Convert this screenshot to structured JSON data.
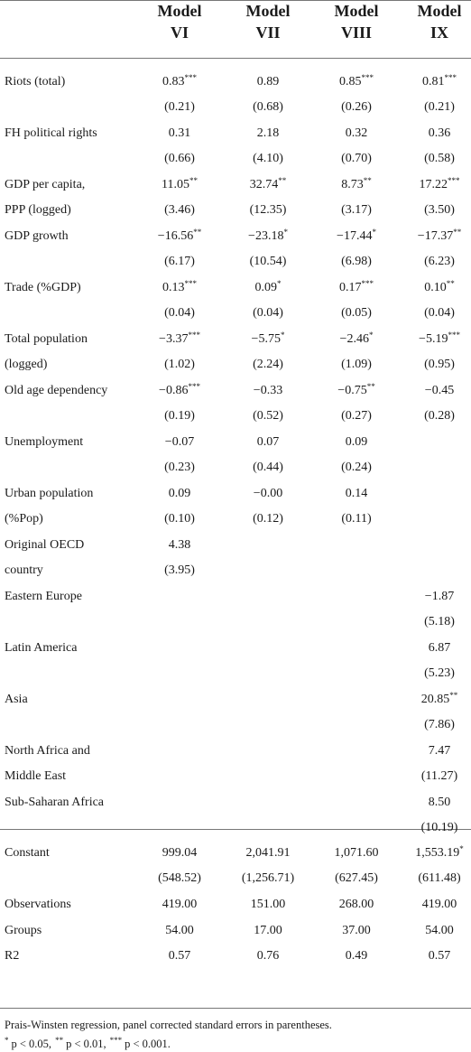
{
  "table": {
    "columns": [
      "Model VI",
      "Model VII",
      "Model VIII",
      "Model IX"
    ],
    "coefficients": [
      {
        "label": [
          "Riots (total)"
        ],
        "coef": [
          "0.83",
          "0.89",
          "0.85",
          "0.81"
        ],
        "stars": [
          "***",
          null,
          "***",
          "***"
        ],
        "se": [
          "(0.21)",
          "(0.68)",
          "(0.26)",
          "(0.21)"
        ]
      },
      {
        "label": [
          "FH political rights"
        ],
        "coef": [
          "0.31",
          "2.18",
          "0.32",
          "0.36"
        ],
        "stars": [
          null,
          null,
          null,
          null
        ],
        "se": [
          "(0.66)",
          "(4.10)",
          "(0.70)",
          "(0.58)"
        ]
      },
      {
        "label": [
          "GDP per capita,",
          "PPP (logged)"
        ],
        "coef": [
          "11.05",
          "32.74",
          "8.73",
          "17.22"
        ],
        "stars": [
          "**",
          "**",
          "**",
          "***"
        ],
        "se": [
          "(3.46)",
          "(12.35)",
          "(3.17)",
          "(3.50)"
        ]
      },
      {
        "label": [
          "GDP growth"
        ],
        "coef": [
          "−16.56",
          "−23.18",
          "−17.44",
          "−17.37"
        ],
        "stars": [
          "**",
          "*",
          "*",
          "**"
        ],
        "se": [
          "(6.17)",
          "(10.54)",
          "(6.98)",
          "(6.23)"
        ]
      },
      {
        "label": [
          "Trade (%GDP)"
        ],
        "coef": [
          "0.13",
          "0.09",
          "0.17",
          "0.10"
        ],
        "stars": [
          "***",
          "*",
          "***",
          "**"
        ],
        "se": [
          "(0.04)",
          "(0.04)",
          "(0.05)",
          "(0.04)"
        ]
      },
      {
        "label": [
          "Total population",
          "(logged)"
        ],
        "coef": [
          "−3.37",
          "−5.75",
          "−2.46",
          "−5.19"
        ],
        "stars": [
          "***",
          "*",
          "*",
          "***"
        ],
        "se": [
          "(1.02)",
          "(2.24)",
          "(1.09)",
          "(0.95)"
        ]
      },
      {
        "label": [
          "Old age dependency"
        ],
        "coef": [
          "−0.86",
          "−0.33",
          "−0.75",
          "−0.45"
        ],
        "stars": [
          "***",
          null,
          "**",
          null
        ],
        "se": [
          "(0.19)",
          "(0.52)",
          "(0.27)",
          "(0.28)"
        ]
      },
      {
        "label": [
          "Unemployment"
        ],
        "coef": [
          "−0.07",
          "0.07",
          "0.09",
          null
        ],
        "stars": [
          null,
          null,
          null,
          null
        ],
        "se": [
          "(0.23)",
          "(0.44)",
          "(0.24)",
          null
        ]
      },
      {
        "label": [
          "Urban population",
          "(%Pop)"
        ],
        "coef": [
          "0.09",
          "−0.00",
          "0.14",
          null
        ],
        "stars": [
          null,
          null,
          null,
          null
        ],
        "se": [
          "(0.10)",
          "(0.12)",
          "(0.11)",
          null
        ]
      },
      {
        "label": [
          "Original OECD",
          "country"
        ],
        "coef": [
          "4.38",
          null,
          null,
          null
        ],
        "stars": [
          null,
          null,
          null,
          null
        ],
        "se": [
          "(3.95)",
          null,
          null,
          null
        ]
      },
      {
        "label": [
          "Eastern Europe"
        ],
        "coef": [
          null,
          null,
          null,
          "−1.87"
        ],
        "stars": [
          null,
          null,
          null,
          null
        ],
        "se": [
          null,
          null,
          null,
          "(5.18)"
        ]
      },
      {
        "label": [
          "Latin America"
        ],
        "coef": [
          null,
          null,
          null,
          "6.87"
        ],
        "stars": [
          null,
          null,
          null,
          null
        ],
        "se": [
          null,
          null,
          null,
          "(5.23)"
        ]
      },
      {
        "label": [
          "Asia"
        ],
        "coef": [
          null,
          null,
          null,
          "20.85"
        ],
        "stars": [
          null,
          null,
          null,
          "**"
        ],
        "se": [
          null,
          null,
          null,
          "(7.86)"
        ]
      },
      {
        "label": [
          "North Africa and",
          "Middle East"
        ],
        "coef": [
          null,
          null,
          null,
          "7.47"
        ],
        "stars": [
          null,
          null,
          null,
          null
        ],
        "se": [
          null,
          null,
          null,
          "(11.27)"
        ]
      },
      {
        "label": [
          "Sub-Saharan Africa"
        ],
        "coef": [
          null,
          null,
          null,
          "8.50"
        ],
        "stars": [
          null,
          null,
          null,
          null
        ],
        "se": [
          null,
          null,
          null,
          "(10.19)"
        ]
      }
    ],
    "summary": [
      {
        "label": [
          "Constant"
        ],
        "coef": [
          "999.04",
          "2,041.91",
          "1,071.60",
          "1,553.19"
        ],
        "stars": [
          null,
          null,
          null,
          "*"
        ],
        "se": [
          "(548.52)",
          "(1,256.71)",
          "(627.45)",
          "(611.48)"
        ]
      },
      {
        "label": [
          "Observations"
        ],
        "coef": [
          "419.00",
          "151.00",
          "268.00",
          "419.00"
        ],
        "stars": [
          null,
          null,
          null,
          null
        ]
      },
      {
        "label": [
          "Groups"
        ],
        "coef": [
          "54.00",
          "17.00",
          "37.00",
          "54.00"
        ],
        "stars": [
          null,
          null,
          null,
          null
        ]
      },
      {
        "label": [
          "R2"
        ],
        "coef": [
          "0.57",
          "0.76",
          "0.49",
          "0.57"
        ],
        "stars": [
          null,
          null,
          null,
          null
        ]
      }
    ],
    "note": "Prais-Winsten regression, panel corrected standard errors in parentheses.",
    "significance": [
      {
        "stars": "*",
        "text": "p < 0.05,"
      },
      {
        "stars": "**",
        "text": "p < 0.01,"
      },
      {
        "stars": "***",
        "text": "p < 0.001."
      }
    ]
  }
}
